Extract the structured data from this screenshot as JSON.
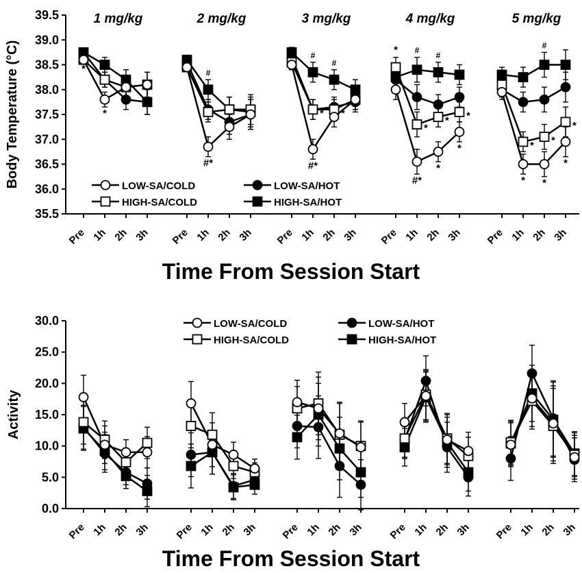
{
  "chart_data": [
    {
      "type": "line",
      "panel": "top",
      "ylabel": "Body Temperature (°C)",
      "xlabel": "Time From Session Start",
      "ylim": [
        35.5,
        39.5
      ],
      "yticks": [
        "35.5",
        "36.0",
        "36.5",
        "37.0",
        "37.5",
        "38.0",
        "38.5",
        "39.0",
        "39.5"
      ],
      "time_labels": [
        "Pre",
        "1h",
        "2h",
        "3h"
      ],
      "groups": [
        {
          "dose": "1 mg/kg",
          "series": [
            {
              "name": "LOW-SA/COLD",
              "values": [
                38.6,
                37.8,
                38.05,
                38.1
              ]
            },
            {
              "name": "HIGH-SA/COLD",
              "values": [
                38.6,
                38.2,
                38.05,
                38.1
              ]
            },
            {
              "name": "LOW-SA/HOT",
              "values": [
                38.75,
                38.2,
                37.8,
                37.75
              ]
            },
            {
              "name": "HIGH-SA/HOT",
              "values": [
                38.75,
                38.5,
                38.2,
                37.75
              ]
            }
          ],
          "errors": [
            0.05,
            0.15,
            0.2,
            0.25
          ],
          "annotations": [
            {
              "t": 0,
              "text": "*",
              "pos": "below"
            },
            {
              "t": 1,
              "text": "*",
              "pos": "below"
            }
          ]
        },
        {
          "dose": "2 mg/kg",
          "series": [
            {
              "name": "LOW-SA/COLD",
              "values": [
                38.45,
                36.85,
                37.25,
                37.5
              ]
            },
            {
              "name": "HIGH-SA/COLD",
              "values": [
                38.45,
                37.55,
                37.6,
                37.6
              ]
            },
            {
              "name": "LOW-SA/HOT",
              "values": [
                38.55,
                37.6,
                37.35,
                37.5
              ]
            },
            {
              "name": "HIGH-SA/HOT",
              "values": [
                38.6,
                38.0,
                37.6,
                37.55
              ]
            }
          ],
          "errors": [
            0.05,
            0.2,
            0.25,
            0.3
          ],
          "annotations": [
            {
              "t": 1,
              "text": "#*",
              "pos": "below"
            },
            {
              "t": 1,
              "text": "#",
              "pos": "above"
            }
          ]
        },
        {
          "dose": "3 mg/kg",
          "series": [
            {
              "name": "LOW-SA/COLD",
              "values": [
                38.5,
                36.8,
                37.45,
                37.8
              ]
            },
            {
              "name": "HIGH-SA/COLD",
              "values": [
                38.55,
                37.6,
                37.6,
                37.8
              ]
            },
            {
              "name": "LOW-SA/HOT",
              "values": [
                38.65,
                37.6,
                37.65,
                37.75
              ]
            },
            {
              "name": "HIGH-SA/HOT",
              "values": [
                38.75,
                38.35,
                38.2,
                38.0
              ]
            }
          ],
          "errors": [
            0.1,
            0.2,
            0.2,
            0.2
          ],
          "annotations": [
            {
              "t": 1,
              "text": "#*",
              "pos": "below"
            },
            {
              "t": 1,
              "text": "#",
              "pos": "above"
            },
            {
              "t": 2,
              "text": "#",
              "pos": "above"
            },
            {
              "t": 1,
              "text": "*",
              "pos": "right"
            },
            {
              "t": 2,
              "text": "*",
              "pos": "right"
            }
          ]
        },
        {
          "dose": "4 mg/kg",
          "series": [
            {
              "name": "LOW-SA/COLD",
              "values": [
                38.0,
                36.55,
                36.75,
                37.15
              ]
            },
            {
              "name": "HIGH-SA/COLD",
              "values": [
                38.45,
                37.3,
                37.45,
                37.55
              ]
            },
            {
              "name": "LOW-SA/HOT",
              "values": [
                38.2,
                37.85,
                37.7,
                37.85
              ]
            },
            {
              "name": "HIGH-SA/HOT",
              "values": [
                38.25,
                38.4,
                38.35,
                38.3
              ]
            }
          ],
          "errors": [
            0.2,
            0.25,
            0.2,
            0.2
          ],
          "annotations": [
            {
              "t": 0,
              "text": "*",
              "pos": "above"
            },
            {
              "t": 1,
              "text": "#*",
              "pos": "below"
            },
            {
              "t": 2,
              "text": "*",
              "pos": "below"
            },
            {
              "t": 3,
              "text": "*",
              "pos": "below"
            },
            {
              "t": 1,
              "text": "#",
              "pos": "above"
            },
            {
              "t": 2,
              "text": "#",
              "pos": "above"
            },
            {
              "t": 1,
              "text": "*",
              "pos": "right"
            },
            {
              "t": 2,
              "text": "*",
              "pos": "right"
            },
            {
              "t": 3,
              "text": "*",
              "pos": "right"
            }
          ]
        },
        {
          "dose": "5 mg/kg",
          "series": [
            {
              "name": "LOW-SA/COLD",
              "values": [
                37.95,
                36.5,
                36.5,
                36.95
              ]
            },
            {
              "name": "HIGH-SA/COLD",
              "values": [
                38.1,
                36.95,
                37.05,
                37.35
              ]
            },
            {
              "name": "LOW-SA/HOT",
              "values": [
                38.0,
                37.75,
                37.8,
                38.05
              ]
            },
            {
              "name": "HIGH-SA/HOT",
              "values": [
                38.3,
                38.25,
                38.5,
                38.5
              ]
            }
          ],
          "errors": [
            0.15,
            0.2,
            0.25,
            0.3
          ],
          "annotations": [
            {
              "t": 1,
              "text": "*",
              "pos": "below"
            },
            {
              "t": 2,
              "text": "*",
              "pos": "below"
            },
            {
              "t": 3,
              "text": "*",
              "pos": "below"
            },
            {
              "t": 2,
              "text": "#",
              "pos": "above"
            },
            {
              "t": 1,
              "text": "*",
              "pos": "right"
            },
            {
              "t": 2,
              "text": "*",
              "pos": "right"
            },
            {
              "t": 3,
              "text": "*",
              "pos": "right"
            }
          ]
        }
      ],
      "legend": {
        "placement": "bottom-left",
        "entries": [
          "LOW-SA/COLD",
          "LOW-SA/HOT",
          "HIGH-SA/COLD",
          "HIGH-SA/HOT"
        ]
      }
    },
    {
      "type": "line",
      "panel": "bottom",
      "ylabel": "Activity",
      "xlabel": "Time From Session Start",
      "ylim": [
        0,
        30
      ],
      "yticks": [
        "0.0",
        "5.0",
        "10.0",
        "15.0",
        "20.0",
        "25.0",
        "30.0"
      ],
      "time_labels": [
        "Pre",
        "1h",
        "2h",
        "3h"
      ],
      "groups": [
        {
          "series": [
            {
              "name": "LOW-SA/COLD",
              "values": [
                17.8,
                10.2,
                9.0,
                9.0
              ]
            },
            {
              "name": "HIGH-SA/COLD",
              "values": [
                13.8,
                11.0,
                7.4,
                10.5
              ]
            },
            {
              "name": "LOW-SA/HOT",
              "values": [
                13.0,
                8.8,
                5.8,
                4.0
              ]
            },
            {
              "name": "HIGH-SA/HOT",
              "values": [
                12.8,
                9.2,
                5.2,
                2.8
              ]
            }
          ],
          "errors": [
            3.5,
            3.0,
            2.0,
            2.5
          ]
        },
        {
          "series": [
            {
              "name": "LOW-SA/COLD",
              "values": [
                16.8,
                10.2,
                8.6,
                6.4
              ]
            },
            {
              "name": "HIGH-SA/COLD",
              "values": [
                13.2,
                11.8,
                6.8,
                5.8
              ]
            },
            {
              "name": "LOW-SA/HOT",
              "values": [
                8.6,
                9.0,
                3.6,
                4.6
              ]
            },
            {
              "name": "HIGH-SA/HOT",
              "values": [
                6.8,
                9.0,
                3.4,
                3.8
              ]
            }
          ],
          "errors": [
            3.5,
            3.5,
            2.0,
            1.5
          ]
        },
        {
          "series": [
            {
              "name": "LOW-SA/COLD",
              "values": [
                17.0,
                16.0,
                12.0,
                9.8
              ]
            },
            {
              "name": "HIGH-SA/COLD",
              "values": [
                16.0,
                16.8,
                11.8,
                10.0
              ]
            },
            {
              "name": "LOW-SA/HOT",
              "values": [
                13.2,
                13.0,
                6.8,
                3.8
              ]
            },
            {
              "name": "HIGH-SA/HOT",
              "values": [
                11.4,
                15.0,
                9.6,
                5.8
              ]
            }
          ],
          "errors": [
            3.5,
            5.0,
            5.0,
            4.0
          ]
        },
        {
          "series": [
            {
              "name": "LOW-SA/COLD",
              "values": [
                13.8,
                18.0,
                11.0,
                9.2
              ]
            },
            {
              "name": "HIGH-SA/COLD",
              "values": [
                11.2,
                18.2,
                11.2,
                8.4
              ]
            },
            {
              "name": "LOW-SA/HOT",
              "values": [
                11.0,
                20.4,
                9.8,
                5.0
              ]
            },
            {
              "name": "HIGH-SA/HOT",
              "values": [
                9.8,
                17.8,
                10.6,
                5.8
              ]
            }
          ],
          "errors": [
            3.0,
            4.0,
            4.0,
            3.0
          ]
        },
        {
          "series": [
            {
              "name": "LOW-SA/COLD",
              "values": [
                10.2,
                17.6,
                13.6,
                8.2
              ]
            },
            {
              "name": "HIGH-SA/COLD",
              "values": [
                10.6,
                17.2,
                13.2,
                8.6
              ]
            },
            {
              "name": "LOW-SA/HOT",
              "values": [
                8.0,
                21.6,
                14.4,
                7.8
              ]
            },
            {
              "name": "HIGH-SA/HOT",
              "values": [
                10.4,
                18.4,
                14.2,
                8.8
              ]
            }
          ],
          "errors": [
            3.5,
            4.5,
            6.0,
            3.5
          ]
        }
      ],
      "legend": {
        "placement": "top-center",
        "entries": [
          "LOW-SA/COLD",
          "LOW-SA/HOT",
          "HIGH-SA/COLD",
          "HIGH-SA/HOT"
        ]
      }
    }
  ]
}
